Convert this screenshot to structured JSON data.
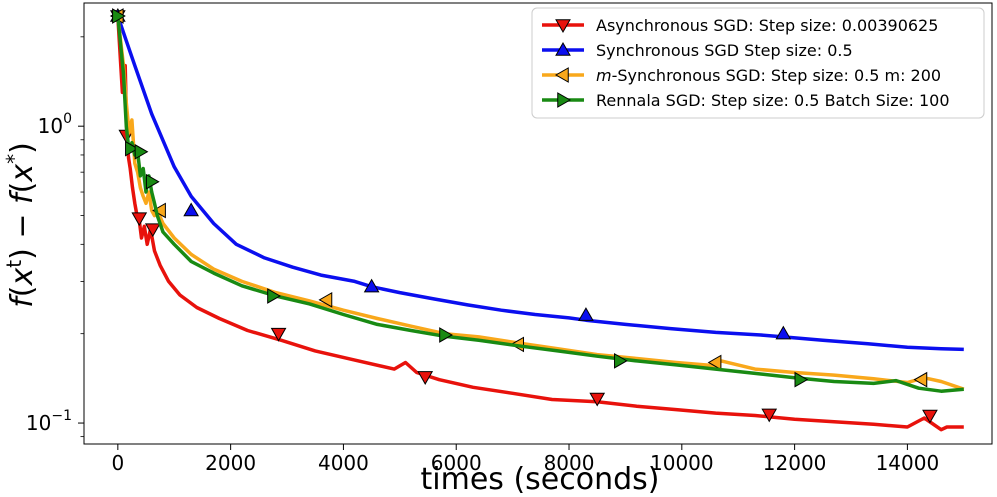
{
  "chart_data": {
    "type": "line",
    "title": "",
    "xlabel": "times (seconds)",
    "ylabel_parts": {
      "f1": "f",
      "x1": "x",
      "sup1": "t",
      "minus": "−",
      "f2": "f",
      "x2": "x",
      "sup2": "*"
    },
    "ylabel": "f(x^t) − f(x^*)",
    "yscale": "log",
    "xlim": [
      -600,
      15500
    ],
    "ylim": [
      0.085,
      2.6
    ],
    "grid": false,
    "legend_position": "top-right",
    "x_ticks": [
      0,
      2000,
      4000,
      6000,
      8000,
      10000,
      12000,
      14000
    ],
    "x_tick_labels": [
      "0",
      "2000",
      "4000",
      "6000",
      "8000",
      "10000",
      "12000",
      "14000"
    ],
    "y_ticks": [
      {
        "value": 1,
        "base": "10",
        "exp": "0"
      },
      {
        "value": 0.1,
        "base": "10",
        "exp": "−1"
      }
    ],
    "series": [
      {
        "name": "Asynchronous SGD",
        "label_prefix": "",
        "label_italic": "",
        "label_rest": "Asynchronous SGD: Step size: 0.00390625",
        "color": "#e8120c",
        "marker": "triangle-down",
        "x": [
          0,
          80,
          130,
          160,
          190,
          220,
          260,
          300,
          340,
          380,
          420,
          470,
          520,
          580,
          650,
          750,
          900,
          1100,
          1400,
          1800,
          2300,
          2900,
          3500,
          4200,
          4900,
          5100,
          5300,
          5700,
          6300,
          7000,
          7700,
          8500,
          9200,
          9900,
          10600,
          11300,
          12000,
          12700,
          13400,
          14000,
          14300,
          14600,
          14700,
          15000
        ],
        "y": [
          2.35,
          1.3,
          1.6,
          0.9,
          0.78,
          0.72,
          0.62,
          0.55,
          0.5,
          0.48,
          0.42,
          0.46,
          0.4,
          0.45,
          0.38,
          0.34,
          0.3,
          0.27,
          0.245,
          0.225,
          0.205,
          0.19,
          0.175,
          0.163,
          0.152,
          0.16,
          0.148,
          0.14,
          0.132,
          0.126,
          0.12,
          0.118,
          0.114,
          0.111,
          0.108,
          0.106,
          0.103,
          0.101,
          0.099,
          0.097,
          0.104,
          0.095,
          0.097,
          0.097
        ],
        "marker_x": [
          0,
          150,
          380,
          620,
          2850,
          5450,
          8500,
          11550,
          14400
        ],
        "marker_y": [
          2.35,
          0.93,
          0.49,
          0.45,
          0.2,
          0.143,
          0.121,
          0.107,
          0.106
        ]
      },
      {
        "name": "Synchronous SGD",
        "label_prefix": "",
        "label_italic": "",
        "label_rest": "Synchronous SGD Step size: 0.5",
        "color": "#0b0fef",
        "marker": "triangle-up",
        "x": [
          0,
          300,
          600,
          1000,
          1300,
          1700,
          2100,
          2600,
          3100,
          3600,
          4200,
          4500,
          5000,
          5600,
          6200,
          6800,
          7400,
          8000,
          8300,
          9000,
          9800,
          10600,
          11400,
          11800,
          12500,
          13300,
          14000,
          14600,
          15000
        ],
        "y": [
          2.35,
          1.6,
          1.1,
          0.73,
          0.58,
          0.47,
          0.4,
          0.36,
          0.335,
          0.315,
          0.3,
          0.288,
          0.275,
          0.262,
          0.25,
          0.24,
          0.232,
          0.226,
          0.222,
          0.215,
          0.208,
          0.202,
          0.198,
          0.195,
          0.19,
          0.185,
          0.18,
          0.178,
          0.177
        ],
        "marker_x": [
          0,
          1300,
          4500,
          8300,
          11800
        ],
        "marker_y": [
          2.35,
          0.52,
          0.288,
          0.231,
          0.2
        ]
      },
      {
        "name": "m-Synchronous SGD",
        "label_prefix": "",
        "label_italic": "m",
        "label_rest": "-Synchronous  SGD: Step size: 0.5 m: 200",
        "color": "#f9a81b",
        "marker": "triangle-left",
        "x": [
          0,
          100,
          150,
          200,
          250,
          300,
          350,
          400,
          450,
          500,
          550,
          600,
          650,
          700,
          800,
          1000,
          1300,
          1700,
          2200,
          2800,
          3400,
          4000,
          4600,
          5200,
          5800,
          6400,
          7100,
          7800,
          8500,
          9200,
          9900,
          10600,
          10700,
          11300,
          12000,
          12700,
          13400,
          14000,
          14300,
          14600,
          15000
        ],
        "y": [
          2.35,
          1.6,
          1.2,
          0.95,
          1.05,
          0.75,
          0.7,
          0.62,
          0.58,
          0.55,
          0.6,
          0.52,
          0.5,
          0.52,
          0.47,
          0.42,
          0.37,
          0.33,
          0.3,
          0.275,
          0.258,
          0.24,
          0.225,
          0.212,
          0.2,
          0.195,
          0.186,
          0.178,
          0.17,
          0.165,
          0.16,
          0.156,
          0.162,
          0.152,
          0.148,
          0.145,
          0.141,
          0.137,
          0.142,
          0.138,
          0.13
        ],
        "marker_x": [
          0,
          750,
          3700,
          7100,
          10600,
          14250
        ],
        "marker_y": [
          2.35,
          0.52,
          0.26,
          0.184,
          0.16,
          0.14
        ]
      },
      {
        "name": "Rennala SGD",
        "label_prefix": "",
        "label_italic": "",
        "label_rest": "Rennala SGD: Step size: 0.5 Batch Size: 100",
        "color": "#198a13",
        "marker": "triangle-right",
        "x": [
          0,
          100,
          150,
          200,
          250,
          300,
          350,
          400,
          450,
          500,
          550,
          600,
          650,
          700,
          800,
          1000,
          1300,
          1700,
          2200,
          2800,
          3400,
          4000,
          4600,
          5200,
          5800,
          6400,
          7100,
          7800,
          8500,
          9200,
          9900,
          10600,
          11300,
          12000,
          12700,
          13400,
          13800,
          14200,
          14600,
          15000
        ],
        "y": [
          2.35,
          1.5,
          1.0,
          0.82,
          0.88,
          0.8,
          0.82,
          0.68,
          0.72,
          0.6,
          0.68,
          0.6,
          0.55,
          0.5,
          0.44,
          0.4,
          0.35,
          0.32,
          0.29,
          0.268,
          0.252,
          0.232,
          0.215,
          0.205,
          0.196,
          0.19,
          0.182,
          0.175,
          0.168,
          0.162,
          0.157,
          0.152,
          0.147,
          0.142,
          0.138,
          0.136,
          0.139,
          0.131,
          0.128,
          0.13
        ],
        "marker_x": [
          0,
          230,
          400,
          600,
          2750,
          5800,
          8900,
          12100
        ],
        "marker_y": [
          2.35,
          0.84,
          0.82,
          0.65,
          0.268,
          0.198,
          0.162,
          0.14
        ]
      }
    ]
  }
}
